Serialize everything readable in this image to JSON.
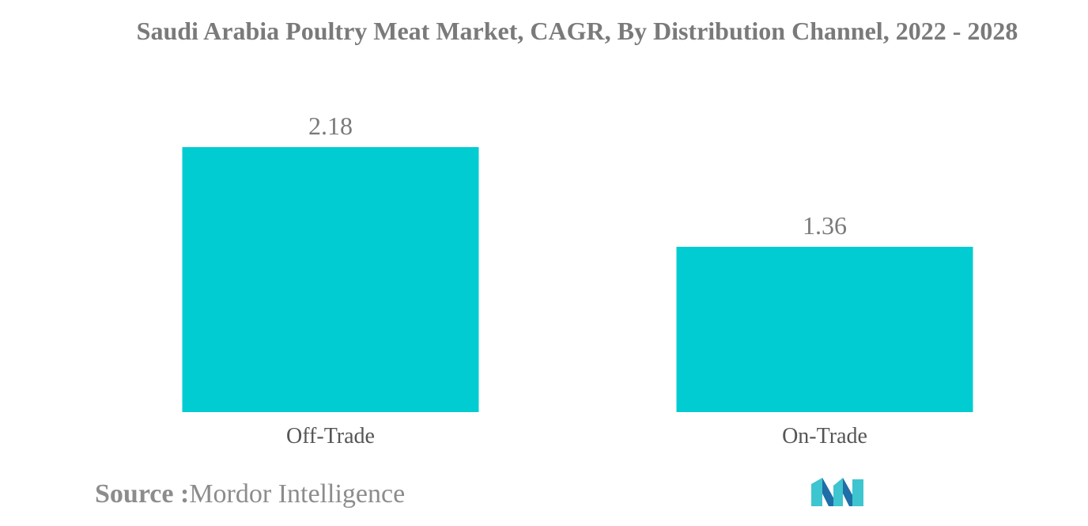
{
  "chart_data": {
    "type": "bar",
    "title": "Saudi Arabia Poultry Meat Market, CAGR, By Distribution Channel, 2022 - 2028",
    "categories": [
      "Off-Trade",
      "On-Trade"
    ],
    "values": [
      2.18,
      1.36
    ],
    "value_labels": [
      "2.18",
      "1.36"
    ],
    "xlabel": "",
    "ylabel": "",
    "ylim": [
      0,
      2.18
    ],
    "grid": false,
    "legend": "none",
    "bar_color": "#00ccd2"
  },
  "source": {
    "key": "Source :",
    "value": "Mordor Intelligence"
  },
  "logo": {
    "icon": "mordor-intelligence-logo-icon",
    "colors": [
      "#3ec5cf",
      "#1f6ea8"
    ]
  }
}
